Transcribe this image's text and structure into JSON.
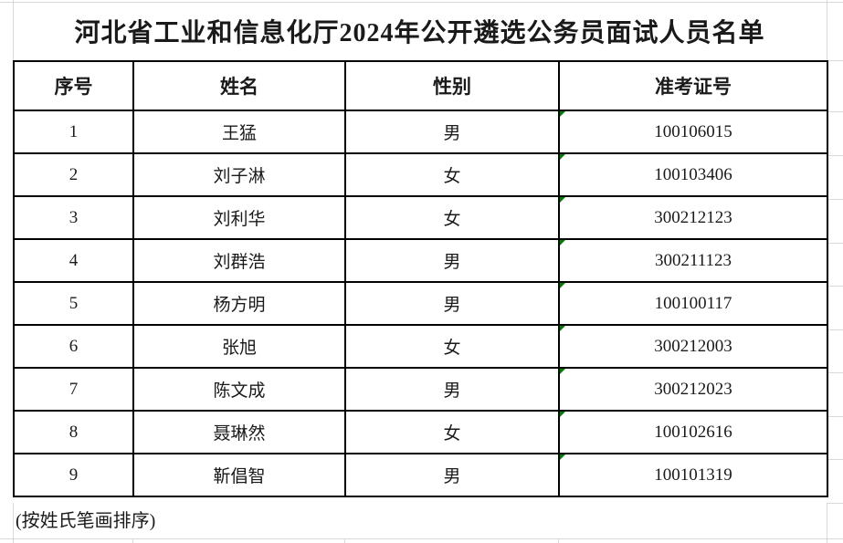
{
  "page": {
    "title": "河北省工业和信息化厅2024年公开遴选公务员面试人员名单",
    "footnote": "(按姓氏笔画排序)"
  },
  "table": {
    "headers": [
      "序号",
      "姓名",
      "性别",
      "准考证号"
    ],
    "rows": [
      {
        "seq": "1",
        "name": "王猛",
        "gender": "男",
        "ticket": "100106015"
      },
      {
        "seq": "2",
        "name": "刘子淋",
        "gender": "女",
        "ticket": "100103406"
      },
      {
        "seq": "3",
        "name": "刘利华",
        "gender": "女",
        "ticket": "300212123"
      },
      {
        "seq": "4",
        "name": "刘群浩",
        "gender": "男",
        "ticket": "300211123"
      },
      {
        "seq": "5",
        "name": "杨方明",
        "gender": "男",
        "ticket": "100100117"
      },
      {
        "seq": "6",
        "name": "张旭",
        "gender": "女",
        "ticket": "300212003"
      },
      {
        "seq": "7",
        "name": "陈文成",
        "gender": "男",
        "ticket": "300212023"
      },
      {
        "seq": "8",
        "name": "聂琳然",
        "gender": "女",
        "ticket": "100102616"
      },
      {
        "seq": "9",
        "name": "靳倡智",
        "gender": "男",
        "ticket": "100101319"
      }
    ]
  },
  "icons": {
    "error_triangle": "number-stored-as-text-indicator"
  },
  "colors": {
    "background": "#ffffff",
    "table_border": "#000000",
    "gridline": "#d9d9d9",
    "error_indicator": "#008000",
    "text": "#1a1a1a"
  }
}
